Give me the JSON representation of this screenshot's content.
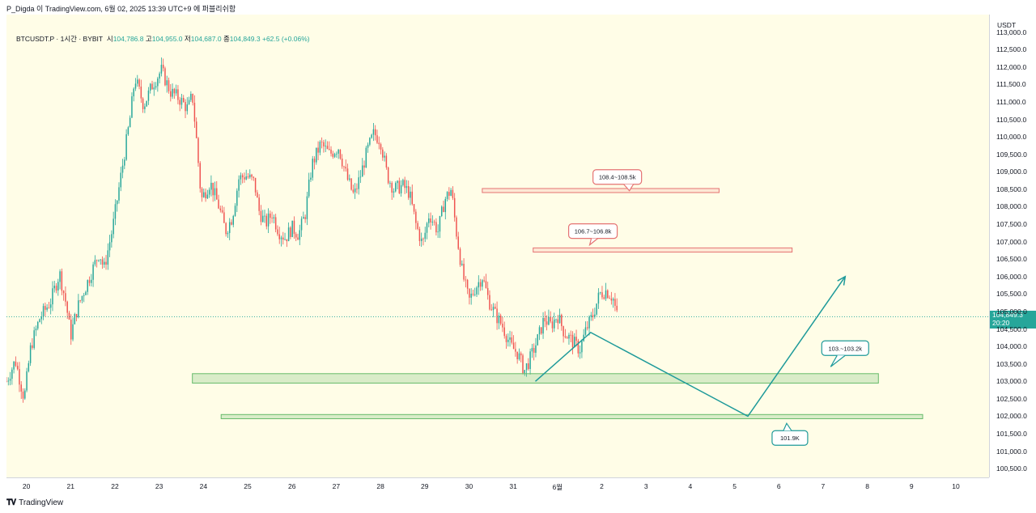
{
  "header": {
    "title": "P_Digda 이 TradingView.com, 6월 02, 2025 13:39 UTC+9 에 퍼블리쉬함"
  },
  "legend": {
    "symbol": "BTCUSDT.P · 1시간 · BYBIT",
    "open_label": "시",
    "open": "104,786.8",
    "high_label": "고",
    "high": "104,955.0",
    "low_label": "저",
    "low": "104,687.0",
    "close_label": "종",
    "close": "104,849.3",
    "change": "+62.5 (+0.06%)"
  },
  "price_axis": {
    "currency": "USDT",
    "current_price": "104,849.3",
    "countdown": "20:20"
  },
  "footer": {
    "brand": "TradingView"
  },
  "colors": {
    "up": "#26a69a",
    "down": "#ef5350",
    "resistance": "#e57373",
    "support": "#66bb6a",
    "path": "#1e9a9a",
    "background": "#fffde7"
  },
  "chart_data": {
    "type": "candlestick",
    "timeframe": "1h",
    "ylim": [
      100250,
      113500
    ],
    "y_ticks": [
      100500,
      101000,
      101500,
      102000,
      102500,
      103000,
      103500,
      104000,
      104500,
      105000,
      105500,
      106000,
      106500,
      107000,
      107500,
      108000,
      108500,
      109000,
      109500,
      110000,
      110500,
      111000,
      111500,
      112000,
      112500,
      113000
    ],
    "y_tick_labels": [
      "100,500.0",
      "101,000.0",
      "101,500.0",
      "102,000.0",
      "102,500.0",
      "103,000.0",
      "103,500.0",
      "104,000.0",
      "104,500.0",
      "105,000.0",
      "105,500.0",
      "106,000.0",
      "106,500.0",
      "107,000.0",
      "107,500.0",
      "108,000.0",
      "108,500.0",
      "109,000.0",
      "109,500.0",
      "110,000.0",
      "110,500.0",
      "111,000.0",
      "111,500.0",
      "112,000.0",
      "112,500.0",
      "113,000.0"
    ],
    "x_ticks": [
      {
        "day": 0,
        "label": "20"
      },
      {
        "day": 1,
        "label": "21"
      },
      {
        "day": 2,
        "label": "22"
      },
      {
        "day": 3,
        "label": "23"
      },
      {
        "day": 4,
        "label": "24"
      },
      {
        "day": 5,
        "label": "25"
      },
      {
        "day": 6,
        "label": "26"
      },
      {
        "day": 7,
        "label": "27"
      },
      {
        "day": 8,
        "label": "28"
      },
      {
        "day": 9,
        "label": "29"
      },
      {
        "day": 10,
        "label": "30"
      },
      {
        "day": 11,
        "label": "31"
      },
      {
        "day": 12,
        "label": "6월"
      },
      {
        "day": 13,
        "label": "2"
      },
      {
        "day": 14,
        "label": "3"
      },
      {
        "day": 15,
        "label": "4"
      },
      {
        "day": 16,
        "label": "5"
      },
      {
        "day": 17,
        "label": "6"
      },
      {
        "day": 18,
        "label": "7"
      },
      {
        "day": 19,
        "label": "8"
      },
      {
        "day": 20,
        "label": "9"
      },
      {
        "day": 21,
        "label": "10"
      }
    ],
    "x_range_days": [
      -0.4,
      21.8
    ],
    "price_path": [
      [
        -0.4,
        103000
      ],
      [
        -0.2,
        103600
      ],
      [
        0.0,
        102500
      ],
      [
        0.15,
        104000
      ],
      [
        0.35,
        104800
      ],
      [
        0.6,
        105300
      ],
      [
        0.8,
        106100
      ],
      [
        0.95,
        105200
      ],
      [
        1.05,
        104300
      ],
      [
        1.2,
        105100
      ],
      [
        1.45,
        105900
      ],
      [
        1.7,
        106700
      ],
      [
        1.8,
        106200
      ],
      [
        2.0,
        107400
      ],
      [
        2.2,
        109000
      ],
      [
        2.4,
        110600
      ],
      [
        2.5,
        111700
      ],
      [
        2.7,
        110900
      ],
      [
        2.9,
        111500
      ],
      [
        3.1,
        111900
      ],
      [
        3.3,
        111300
      ],
      [
        3.5,
        111100
      ],
      [
        3.7,
        110800
      ],
      [
        3.8,
        111200
      ],
      [
        3.9,
        109800
      ],
      [
        4.0,
        108200
      ],
      [
        4.2,
        108700
      ],
      [
        4.4,
        108000
      ],
      [
        4.55,
        107300
      ],
      [
        4.7,
        107700
      ],
      [
        4.85,
        108800
      ],
      [
        5.0,
        108900
      ],
      [
        5.2,
        108700
      ],
      [
        5.3,
        107900
      ],
      [
        5.45,
        107500
      ],
      [
        5.6,
        107800
      ],
      [
        5.75,
        107300
      ],
      [
        5.9,
        107100
      ],
      [
        6.05,
        107400
      ],
      [
        6.2,
        107200
      ],
      [
        6.35,
        107800
      ],
      [
        6.5,
        109200
      ],
      [
        6.7,
        109800
      ],
      [
        6.9,
        109500
      ],
      [
        7.1,
        109700
      ],
      [
        7.3,
        108800
      ],
      [
        7.45,
        108300
      ],
      [
        7.6,
        108900
      ],
      [
        7.75,
        109600
      ],
      [
        7.9,
        110100
      ],
      [
        8.05,
        109900
      ],
      [
        8.2,
        108900
      ],
      [
        8.35,
        108500
      ],
      [
        8.55,
        108600
      ],
      [
        8.7,
        108400
      ],
      [
        8.85,
        107500
      ],
      [
        9.0,
        106900
      ],
      [
        9.15,
        107800
      ],
      [
        9.35,
        107300
      ],
      [
        9.5,
        108200
      ],
      [
        9.65,
        108500
      ],
      [
        9.75,
        107400
      ],
      [
        9.9,
        106100
      ],
      [
        10.05,
        105300
      ],
      [
        10.2,
        105700
      ],
      [
        10.35,
        106000
      ],
      [
        10.5,
        105300
      ],
      [
        10.65,
        104900
      ],
      [
        10.8,
        104600
      ],
      [
        11.0,
        104000
      ],
      [
        11.15,
        103800
      ],
      [
        11.3,
        103300
      ],
      [
        11.45,
        103700
      ],
      [
        11.6,
        104200
      ],
      [
        11.75,
        104800
      ],
      [
        11.9,
        104600
      ],
      [
        12.05,
        104900
      ],
      [
        12.2,
        104400
      ],
      [
        12.35,
        104200
      ],
      [
        12.55,
        103900
      ],
      [
        12.7,
        104500
      ],
      [
        12.85,
        104900
      ],
      [
        13.0,
        105500
      ],
      [
        13.15,
        105600
      ],
      [
        13.3,
        105400
      ],
      [
        13.4,
        104850
      ]
    ],
    "zones": [
      {
        "type": "resistance",
        "from_day": 10.35,
        "to_day": 15.7,
        "low": 108420,
        "high": 108520
      },
      {
        "type": "resistance",
        "from_day": 11.5,
        "to_day": 17.35,
        "low": 106700,
        "high": 106820
      },
      {
        "type": "support",
        "from_day": 3.8,
        "to_day": 19.3,
        "low": 102950,
        "high": 103220
      },
      {
        "type": "support",
        "from_day": 4.45,
        "to_day": 20.3,
        "low": 101930,
        "high": 102050
      }
    ],
    "callouts": [
      {
        "text": "108.4~108.5k",
        "day": 13.4,
        "price": 108850,
        "style": "resistance"
      },
      {
        "text": "106.7~106.8k",
        "day": 12.85,
        "price": 107300,
        "style": "resistance"
      },
      {
        "text": "103.~103.2k",
        "day": 18.55,
        "price": 103950,
        "style": "support"
      },
      {
        "text": "101.9K",
        "day": 17.3,
        "price": 101380,
        "style": "support"
      }
    ],
    "projection": [
      [
        11.55,
        103000
      ],
      [
        12.8,
        104400
      ],
      [
        16.35,
        102000
      ],
      [
        18.55,
        106000
      ]
    ],
    "current_price_level": 104849.3
  }
}
